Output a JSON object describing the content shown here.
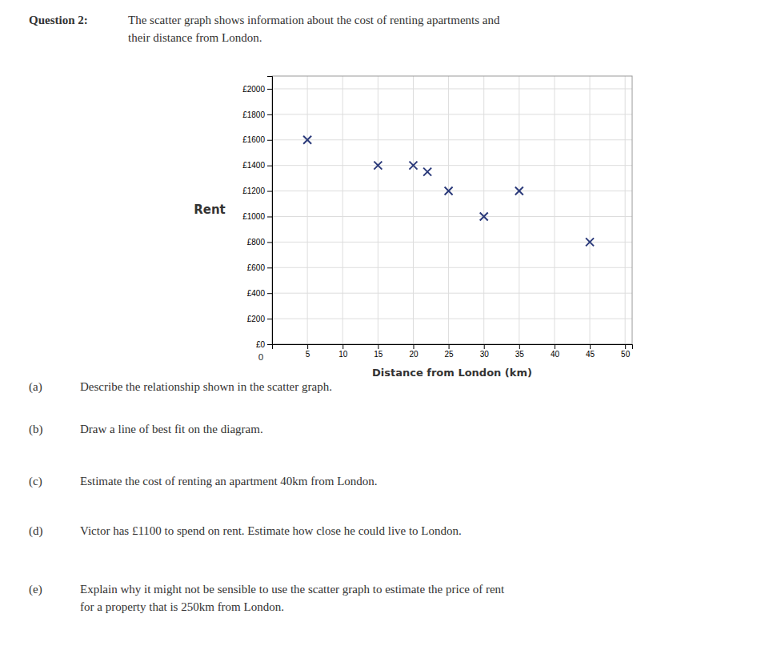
{
  "chart_data": {
    "type": "scatter",
    "title": "Question 2:",
    "subtitle": "The scatter graph shows information about the cost of renting apartments and\ntheir distance from London.",
    "x_label": "Distance from London (km)",
    "y_label": "Rent",
    "x": [
      5,
      15,
      20,
      22,
      25,
      30,
      35,
      45
    ],
    "values": [
      1600,
      1400,
      1400,
      1350,
      1200,
      1000,
      1200,
      800
    ],
    "color": "#2B3A7A",
    "marker": "x",
    "xlim": [
      0,
      51
    ],
    "ylim": [
      0,
      2100
    ],
    "xticks": [
      5,
      10,
      15,
      20,
      25,
      30,
      35,
      40,
      45,
      50
    ],
    "yticks": [
      {
        "value": 0,
        "label": "£0"
      },
      {
        "value": 200,
        "label": "£200"
      },
      {
        "value": 400,
        "label": "£400"
      },
      {
        "value": 600,
        "label": "£600"
      },
      {
        "value": 800,
        "label": "£800"
      },
      {
        "value": 1000,
        "label": "£1000"
      },
      {
        "value": 1200,
        "label": "£1200"
      },
      {
        "value": 1400,
        "label": "£1400"
      },
      {
        "value": 1600,
        "label": "£1600"
      },
      {
        "value": 1800,
        "label": "£1800"
      },
      {
        "value": 2000,
        "label": "£2000"
      }
    ],
    "grid": true,
    "annotations": [
      "0",
      "(a)",
      "Describe the relationship shown in the scatter graph.",
      "(b)",
      "Draw a line of best fit on the diagram.",
      "(c)",
      "Estimate the cost of renting an apartment 40km from London.",
      "(d)",
      "Victor has £1100 to spend on rent. Estimate how close he could live to London.",
      "(e)",
      "Explain why it might not be sensible to use the scatter graph to estimate the price of rent\nfor a property that is 250km from London."
    ]
  }
}
